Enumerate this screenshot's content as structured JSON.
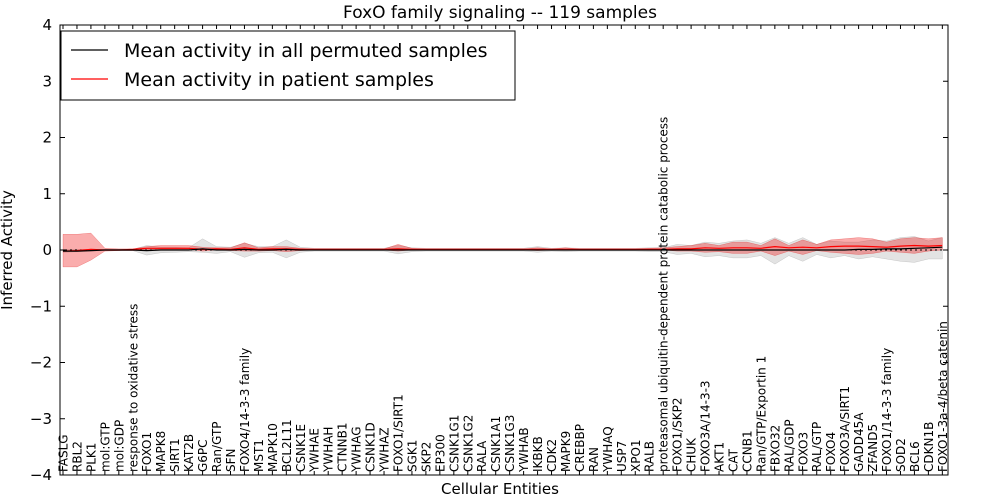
{
  "chart_data": {
    "type": "line",
    "title": "FoxO family signaling -- 119 samples",
    "xlabel": "Cellular Entities",
    "ylabel": "Inferred Activity",
    "ylim": [
      -4,
      4
    ],
    "yticks": [
      -4,
      -3,
      -2,
      -1,
      0,
      1,
      2,
      3,
      4
    ],
    "ytick_labels": [
      "−4",
      "−3",
      "−2",
      "−1",
      "0",
      "1",
      "2",
      "3",
      "4"
    ],
    "grid": false,
    "legend_position": "top-left",
    "legend": [
      {
        "label": "Mean activity in all permuted samples",
        "color": "#000000"
      },
      {
        "label": "Mean activity in patient samples",
        "color": "#ff0000"
      }
    ],
    "categories": [
      "FASLG",
      "RBL2",
      "PLK1",
      "mol:GTP",
      "mol:GDP",
      "response to oxidative stress",
      "FOXO1",
      "MAPK8",
      "SIRT1",
      "KAT2B",
      "G6PC",
      "Ran/GTP",
      "SFN",
      "FOXO4/14-3-3 family",
      "MST1",
      "MAPK10",
      "BCL2L11",
      "CSNK1E",
      "YWHAE",
      "YWHAH",
      "CTNNB1",
      "YWHAG",
      "CSNK1D",
      "YWHAZ",
      "FOXO1/SIRT1",
      "SGK1",
      "SKP2",
      "EP300",
      "CSNK1G1",
      "CSNK1G2",
      "RALA",
      "CSNK1A1",
      "CSNK1G3",
      "YWHAB",
      "IKBKB",
      "CDK2",
      "MAPK9",
      "CREBBP",
      "RAN",
      "YWHAQ",
      "USP7",
      "XPO1",
      "RALB",
      "proteasomal ubiquitin-dependent protein catabolic process",
      "FOXO1/SKP2",
      "CHUK",
      "FOXO3A/14-3-3",
      "AKT1",
      "CAT",
      "CCNB1",
      "Ran/GTP/Exportin 1",
      "FBXO32",
      "RAL/GDP",
      "FOXO3",
      "RAL/GTP",
      "FOXO4",
      "FOXO3A/SIRT1",
      "GADD45A",
      "ZFAND5",
      "FOXO1/14-3-3 family",
      "SOD2",
      "BCL6",
      "CDKN1B",
      "FOXO1-3a-4/beta catenin"
    ],
    "series": [
      {
        "name": "Mean activity in all permuted samples",
        "color": "#000000",
        "values": [
          -0.02,
          -0.02,
          -0.01,
          0.0,
          0.0,
          0.0,
          -0.01,
          0.0,
          0.0,
          0.0,
          0.02,
          0.0,
          0.0,
          0.01,
          0.0,
          0.0,
          0.01,
          0.0,
          0.0,
          0.0,
          0.0,
          0.0,
          0.0,
          0.0,
          0.0,
          0.0,
          0.0,
          0.0,
          0.0,
          0.0,
          0.0,
          0.0,
          0.0,
          0.0,
          0.0,
          0.0,
          0.0,
          0.0,
          0.0,
          0.0,
          0.0,
          0.0,
          0.0,
          0.0,
          0.0,
          0.0,
          0.0,
          0.0,
          0.0,
          0.0,
          0.0,
          0.0,
          0.0,
          0.0,
          0.0,
          0.0,
          0.0,
          0.01,
          0.01,
          0.02,
          0.02,
          0.03,
          0.04,
          0.05
        ],
        "lower": [
          -0.04,
          -0.03,
          -0.02,
          -0.01,
          -0.01,
          -0.01,
          -0.09,
          -0.05,
          -0.04,
          -0.03,
          -0.04,
          -0.06,
          -0.03,
          -0.13,
          -0.05,
          -0.04,
          -0.14,
          -0.04,
          -0.02,
          -0.02,
          -0.02,
          -0.02,
          -0.02,
          -0.02,
          -0.07,
          -0.03,
          -0.02,
          -0.02,
          -0.02,
          -0.02,
          -0.02,
          -0.02,
          -0.02,
          -0.02,
          -0.04,
          -0.02,
          -0.03,
          -0.02,
          -0.02,
          -0.02,
          -0.02,
          -0.02,
          -0.03,
          -0.03,
          -0.08,
          -0.06,
          -0.12,
          -0.1,
          -0.14,
          -0.14,
          -0.1,
          -0.25,
          -0.1,
          -0.2,
          -0.08,
          -0.14,
          -0.1,
          -0.16,
          -0.12,
          -0.16,
          -0.2,
          -0.22,
          -0.16,
          -0.16
        ],
        "upper": [
          0.01,
          0.01,
          0.01,
          0.01,
          0.01,
          0.01,
          0.08,
          0.05,
          0.05,
          0.04,
          0.2,
          0.06,
          0.05,
          0.12,
          0.06,
          0.06,
          0.18,
          0.05,
          0.03,
          0.03,
          0.03,
          0.03,
          0.03,
          0.03,
          0.08,
          0.04,
          0.03,
          0.03,
          0.03,
          0.03,
          0.03,
          0.03,
          0.03,
          0.03,
          0.06,
          0.03,
          0.04,
          0.03,
          0.03,
          0.03,
          0.03,
          0.03,
          0.04,
          0.04,
          0.1,
          0.08,
          0.14,
          0.12,
          0.16,
          0.18,
          0.12,
          0.22,
          0.12,
          0.22,
          0.1,
          0.16,
          0.14,
          0.14,
          0.18,
          0.16,
          0.22,
          0.24,
          0.16,
          0.22
        ]
      },
      {
        "name": "Mean activity in patient samples",
        "color": "#ff0000",
        "values": [
          -0.02,
          -0.01,
          0.01,
          0.0,
          0.0,
          0.01,
          0.03,
          0.03,
          0.03,
          0.03,
          0.01,
          0.02,
          0.01,
          0.04,
          0.01,
          0.02,
          0.02,
          0.01,
          0.01,
          0.01,
          0.01,
          0.01,
          0.01,
          0.01,
          0.02,
          0.01,
          0.01,
          0.01,
          0.01,
          0.01,
          0.01,
          0.01,
          0.01,
          0.01,
          0.01,
          0.01,
          0.01,
          0.01,
          0.01,
          0.01,
          0.01,
          0.01,
          0.01,
          0.01,
          0.02,
          0.02,
          0.04,
          0.03,
          0.04,
          0.04,
          0.03,
          0.06,
          0.04,
          0.05,
          0.04,
          0.06,
          0.07,
          0.07,
          0.06,
          0.05,
          0.07,
          0.08,
          0.07,
          0.08
        ],
        "lower": [
          -0.3,
          -0.3,
          -0.18,
          -0.02,
          -0.01,
          -0.01,
          0.0,
          0.01,
          0.01,
          0.01,
          -0.02,
          0.0,
          -0.01,
          -0.02,
          -0.02,
          -0.01,
          -0.03,
          -0.01,
          0.0,
          0.0,
          0.0,
          0.0,
          0.0,
          0.0,
          -0.02,
          0.0,
          0.0,
          0.0,
          0.0,
          0.0,
          0.0,
          0.0,
          0.0,
          0.0,
          -0.01,
          0.0,
          0.0,
          0.0,
          0.0,
          0.0,
          0.0,
          0.0,
          0.0,
          0.0,
          -0.02,
          -0.02,
          -0.04,
          -0.03,
          -0.06,
          -0.06,
          -0.02,
          -0.1,
          -0.02,
          -0.08,
          -0.01,
          -0.04,
          -0.06,
          -0.08,
          -0.06,
          -0.02,
          -0.04,
          -0.06,
          -0.02,
          0.0
        ],
        "upper": [
          0.28,
          0.28,
          0.3,
          0.03,
          0.02,
          0.02,
          0.06,
          0.08,
          0.08,
          0.08,
          0.05,
          0.04,
          0.04,
          0.13,
          0.04,
          0.06,
          0.06,
          0.03,
          0.02,
          0.02,
          0.02,
          0.02,
          0.02,
          0.02,
          0.1,
          0.03,
          0.02,
          0.02,
          0.02,
          0.02,
          0.02,
          0.02,
          0.02,
          0.02,
          0.04,
          0.02,
          0.04,
          0.02,
          0.02,
          0.02,
          0.02,
          0.02,
          0.03,
          0.04,
          0.06,
          0.08,
          0.12,
          0.08,
          0.14,
          0.14,
          0.08,
          0.2,
          0.08,
          0.18,
          0.1,
          0.18,
          0.2,
          0.22,
          0.2,
          0.14,
          0.2,
          0.22,
          0.2,
          0.22
        ]
      }
    ]
  }
}
